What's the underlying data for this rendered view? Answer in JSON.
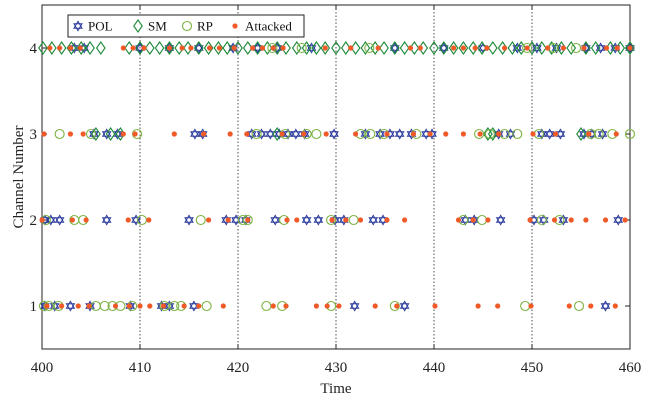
{
  "chart_data": {
    "type": "scatter",
    "xlabel": "Time",
    "ylabel": "Channel Number",
    "xlim": [
      400,
      460
    ],
    "ylim": [
      0.5,
      4.5
    ],
    "x_ticks": [
      "400",
      "410",
      "420",
      "430",
      "440",
      "450",
      "460"
    ],
    "y_ticks": [
      "1",
      "2",
      "3",
      "4"
    ],
    "grid": "vertical dotted lines at 410, 420, 430, 440, 450",
    "legend_position": "top-left",
    "series": [
      {
        "name": "POL",
        "marker": "hexagram",
        "color": "#2a3a9c",
        "points": [
          [
            400.3,
            1
          ],
          [
            401.3,
            1
          ],
          [
            402.9,
            1
          ],
          [
            404.9,
            1
          ],
          [
            409.0,
            1
          ],
          [
            412.2,
            1
          ],
          [
            413.0,
            1
          ],
          [
            415.5,
            1
          ],
          [
            431.9,
            1
          ],
          [
            437.0,
            1
          ],
          [
            457.5,
            1
          ],
          [
            400.3,
            2
          ],
          [
            400.9,
            2
          ],
          [
            401.8,
            2
          ],
          [
            406.6,
            2
          ],
          [
            409.6,
            2
          ],
          [
            415.0,
            2
          ],
          [
            418.8,
            2
          ],
          [
            419.8,
            2
          ],
          [
            420.8,
            2
          ],
          [
            423.8,
            2
          ],
          [
            427.0,
            2
          ],
          [
            428.2,
            2
          ],
          [
            429.9,
            2
          ],
          [
            430.8,
            2
          ],
          [
            433.8,
            2
          ],
          [
            434.8,
            2
          ],
          [
            443.2,
            2
          ],
          [
            444.1,
            2
          ],
          [
            446.8,
            2
          ],
          [
            450.2,
            2
          ],
          [
            451.2,
            2
          ],
          [
            453.2,
            2
          ],
          [
            458.8,
            2
          ],
          [
            405.3,
            3
          ],
          [
            406.6,
            3
          ],
          [
            407.7,
            3
          ],
          [
            415.6,
            3
          ],
          [
            416.4,
            3
          ],
          [
            421.4,
            3
          ],
          [
            422.4,
            3
          ],
          [
            423.3,
            3
          ],
          [
            424.2,
            3
          ],
          [
            425.1,
            3
          ],
          [
            425.9,
            3
          ],
          [
            426.8,
            3
          ],
          [
            429.8,
            3
          ],
          [
            433.0,
            3
          ],
          [
            434.5,
            3
          ],
          [
            435.5,
            3
          ],
          [
            436.5,
            3
          ],
          [
            437.7,
            3
          ],
          [
            439.2,
            3
          ],
          [
            439.8,
            3
          ],
          [
            446.6,
            3
          ],
          [
            447.8,
            3
          ],
          [
            451.0,
            3
          ],
          [
            451.8,
            3
          ],
          [
            452.9,
            3
          ],
          [
            455.3,
            3
          ],
          [
            456.1,
            3
          ],
          [
            457.2,
            3
          ],
          [
            403.3,
            4
          ],
          [
            404.3,
            4
          ],
          [
            410.0,
            4
          ],
          [
            413.0,
            4
          ],
          [
            416.0,
            4
          ],
          [
            419.5,
            4
          ],
          [
            422.0,
            4
          ],
          [
            424.0,
            4
          ],
          [
            427.5,
            4
          ],
          [
            436.0,
            4
          ],
          [
            441.0,
            4
          ],
          [
            445.0,
            4
          ],
          [
            448.5,
            4
          ],
          [
            450.5,
            4
          ],
          [
            452.5,
            4
          ],
          [
            455.5,
            4
          ],
          [
            457.0,
            4
          ],
          [
            458.5,
            4
          ],
          [
            460.0,
            4
          ]
        ]
      },
      {
        "name": "SM",
        "marker": "diamond",
        "color": "#1e8a3a",
        "points": [
          [
            400.1,
            4
          ],
          [
            401.0,
            4
          ],
          [
            402.0,
            4
          ],
          [
            403.0,
            4
          ],
          [
            404.0,
            4
          ],
          [
            404.9,
            4
          ],
          [
            406.0,
            4
          ],
          [
            408.9,
            4
          ],
          [
            410.0,
            4
          ],
          [
            411.0,
            4
          ],
          [
            412.0,
            4
          ],
          [
            413.0,
            4
          ],
          [
            414.0,
            4
          ],
          [
            414.9,
            4
          ],
          [
            416.0,
            4
          ],
          [
            417.0,
            4
          ],
          [
            418.0,
            4
          ],
          [
            418.9,
            4
          ],
          [
            420.0,
            4
          ],
          [
            421.0,
            4
          ],
          [
            422.0,
            4
          ],
          [
            423.0,
            4
          ],
          [
            424.0,
            4
          ],
          [
            424.9,
            4
          ],
          [
            426.0,
            4
          ],
          [
            427.0,
            4
          ],
          [
            428.0,
            4
          ],
          [
            428.9,
            4
          ],
          [
            430.0,
            4
          ],
          [
            431.0,
            4
          ],
          [
            432.0,
            4
          ],
          [
            433.0,
            4
          ],
          [
            434.0,
            4
          ],
          [
            434.9,
            4
          ],
          [
            436.0,
            4
          ],
          [
            437.0,
            4
          ],
          [
            438.0,
            4
          ],
          [
            438.9,
            4
          ],
          [
            440.0,
            4
          ],
          [
            441.0,
            4
          ],
          [
            442.0,
            4
          ],
          [
            443.0,
            4
          ],
          [
            444.0,
            4
          ],
          [
            444.9,
            4
          ],
          [
            446.0,
            4
          ],
          [
            447.0,
            4
          ],
          [
            448.0,
            4
          ],
          [
            448.9,
            4
          ],
          [
            450.0,
            4
          ],
          [
            451.0,
            4
          ],
          [
            452.0,
            4
          ],
          [
            453.0,
            4
          ],
          [
            454.0,
            4
          ],
          [
            455.5,
            4
          ],
          [
            456.5,
            4
          ],
          [
            458.0,
            4
          ],
          [
            459.0,
            4
          ],
          [
            460.0,
            4
          ],
          [
            405.5,
            3
          ],
          [
            407.0,
            3
          ],
          [
            408.0,
            3
          ],
          [
            424.0,
            3
          ],
          [
            445.5,
            3
          ],
          [
            446.0,
            3
          ],
          [
            455.0,
            3
          ]
        ]
      },
      {
        "name": "RP",
        "marker": "circle",
        "color": "#7cb342",
        "points": [
          [
            400.2,
            1
          ],
          [
            400.7,
            1
          ],
          [
            401.7,
            1
          ],
          [
            405.5,
            1
          ],
          [
            406.4,
            1
          ],
          [
            407.2,
            1
          ],
          [
            408.0,
            1
          ],
          [
            409.2,
            1
          ],
          [
            412.5,
            1
          ],
          [
            413.5,
            1
          ],
          [
            414.2,
            1
          ],
          [
            416.8,
            1
          ],
          [
            422.9,
            1
          ],
          [
            424.5,
            1
          ],
          [
            429.5,
            1
          ],
          [
            436.0,
            1
          ],
          [
            449.3,
            1
          ],
          [
            454.8,
            1
          ],
          [
            400.4,
            2
          ],
          [
            403.3,
            2
          ],
          [
            404.2,
            2
          ],
          [
            410.2,
            2
          ],
          [
            416.2,
            2
          ],
          [
            420.5,
            2
          ],
          [
            421.0,
            2
          ],
          [
            424.7,
            2
          ],
          [
            429.5,
            2
          ],
          [
            431.8,
            2
          ],
          [
            443.0,
            2
          ],
          [
            444.9,
            2
          ],
          [
            451.0,
            2
          ],
          [
            452.8,
            2
          ],
          [
            401.8,
            3
          ],
          [
            405.0,
            3
          ],
          [
            409.7,
            3
          ],
          [
            421.9,
            3
          ],
          [
            424.8,
            3
          ],
          [
            427.0,
            3
          ],
          [
            428.0,
            3
          ],
          [
            432.5,
            3
          ],
          [
            433.5,
            3
          ],
          [
            434.9,
            3
          ],
          [
            438.2,
            3
          ],
          [
            444.6,
            3
          ],
          [
            445.7,
            3
          ],
          [
            447.2,
            3
          ],
          [
            448.5,
            3
          ],
          [
            450.7,
            3
          ],
          [
            456.0,
            3
          ],
          [
            456.8,
            3
          ],
          [
            458.2,
            3
          ],
          [
            460.0,
            3
          ],
          [
            423.5,
            4
          ],
          [
            426.5,
            4
          ],
          [
            433.4,
            4
          ],
          [
            449.5,
            4
          ],
          [
            452.2,
            4
          ],
          [
            454.5,
            4
          ]
        ]
      },
      {
        "name": "Attacked",
        "marker": "dot",
        "color": "#f05a28",
        "points": [
          [
            400.5,
            1
          ],
          [
            402.0,
            1
          ],
          [
            403.7,
            1
          ],
          [
            404.8,
            1
          ],
          [
            407.5,
            1
          ],
          [
            408.9,
            1
          ],
          [
            410.0,
            1
          ],
          [
            411.0,
            1
          ],
          [
            412.4,
            1
          ],
          [
            414.5,
            1
          ],
          [
            416.0,
            1
          ],
          [
            418.5,
            1
          ],
          [
            423.6,
            1
          ],
          [
            424.9,
            1
          ],
          [
            428.0,
            1
          ],
          [
            429.1,
            1
          ],
          [
            430.3,
            1
          ],
          [
            434.0,
            1
          ],
          [
            436.2,
            1
          ],
          [
            440.1,
            1
          ],
          [
            444.5,
            1
          ],
          [
            446.5,
            1
          ],
          [
            449.9,
            1
          ],
          [
            453.8,
            1
          ],
          [
            456.0,
            1
          ],
          [
            458.5,
            1
          ],
          [
            400.0,
            2
          ],
          [
            403.1,
            2
          ],
          [
            404.5,
            2
          ],
          [
            408.8,
            2
          ],
          [
            410.9,
            2
          ],
          [
            417.0,
            2
          ],
          [
            419.0,
            2
          ],
          [
            421.0,
            2
          ],
          [
            425.0,
            2
          ],
          [
            426.0,
            2
          ],
          [
            429.6,
            2
          ],
          [
            431.0,
            2
          ],
          [
            432.5,
            2
          ],
          [
            435.2,
            2
          ],
          [
            437.0,
            2
          ],
          [
            442.5,
            2
          ],
          [
            444.0,
            2
          ],
          [
            445.5,
            2
          ],
          [
            449.8,
            2
          ],
          [
            452.3,
            2
          ],
          [
            454.0,
            2
          ],
          [
            455.5,
            2
          ],
          [
            457.5,
            2
          ],
          [
            459.5,
            2
          ],
          [
            400.2,
            3
          ],
          [
            402.9,
            3
          ],
          [
            404.2,
            3
          ],
          [
            408.3,
            3
          ],
          [
            409.5,
            3
          ],
          [
            413.5,
            3
          ],
          [
            416.5,
            3
          ],
          [
            419.2,
            3
          ],
          [
            420.9,
            3
          ],
          [
            424.5,
            3
          ],
          [
            426.7,
            3
          ],
          [
            429.0,
            3
          ],
          [
            432.0,
            3
          ],
          [
            435.2,
            3
          ],
          [
            437.9,
            3
          ],
          [
            439.6,
            3
          ],
          [
            441.2,
            3
          ],
          [
            443.0,
            3
          ],
          [
            444.7,
            3
          ],
          [
            446.6,
            3
          ],
          [
            450.1,
            3
          ],
          [
            452.4,
            3
          ],
          [
            455.8,
            3
          ],
          [
            458.6,
            3
          ],
          [
            400.8,
            4
          ],
          [
            401.8,
            4
          ],
          [
            402.9,
            4
          ],
          [
            403.9,
            4
          ],
          [
            408.3,
            4
          ],
          [
            409.3,
            4
          ],
          [
            410.4,
            4
          ],
          [
            413.0,
            4
          ],
          [
            414.3,
            4
          ],
          [
            415.2,
            4
          ],
          [
            417.1,
            4
          ],
          [
            418.1,
            4
          ],
          [
            419.6,
            4
          ],
          [
            421.5,
            4
          ],
          [
            422.5,
            4
          ],
          [
            423.6,
            4
          ],
          [
            424.6,
            4
          ],
          [
            428.9,
            4
          ],
          [
            431.5,
            4
          ],
          [
            434.3,
            4
          ],
          [
            437.6,
            4
          ],
          [
            438.6,
            4
          ],
          [
            442.0,
            4
          ],
          [
            443.0,
            4
          ],
          [
            444.2,
            4
          ],
          [
            445.4,
            4
          ],
          [
            447.2,
            4
          ],
          [
            449.5,
            4
          ],
          [
            451.6,
            4
          ],
          [
            453.2,
            4
          ],
          [
            455.3,
            4
          ],
          [
            457.6,
            4
          ],
          [
            458.7,
            4
          ],
          [
            460.0,
            4
          ]
        ]
      }
    ]
  }
}
